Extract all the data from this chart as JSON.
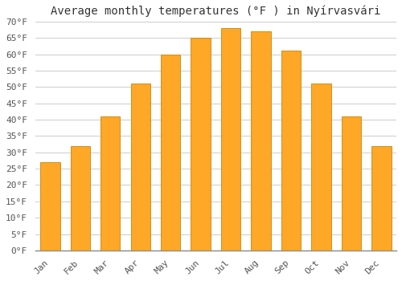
{
  "title": "Average monthly temperatures (°F ) in Nyírvasvári",
  "months": [
    "Jan",
    "Feb",
    "Mar",
    "Apr",
    "May",
    "Jun",
    "Jul",
    "Aug",
    "Sep",
    "Oct",
    "Nov",
    "Dec"
  ],
  "values": [
    27,
    32,
    41,
    51,
    60,
    65,
    68,
    67,
    61,
    51,
    41,
    32
  ],
  "bar_color": "#FFA726",
  "bar_edge_color": "#C8860A",
  "background_color": "#FFFFFF",
  "grid_color": "#CCCCCC",
  "ylim": [
    0,
    70
  ],
  "ytick_step": 5,
  "title_fontsize": 10,
  "tick_fontsize": 8
}
